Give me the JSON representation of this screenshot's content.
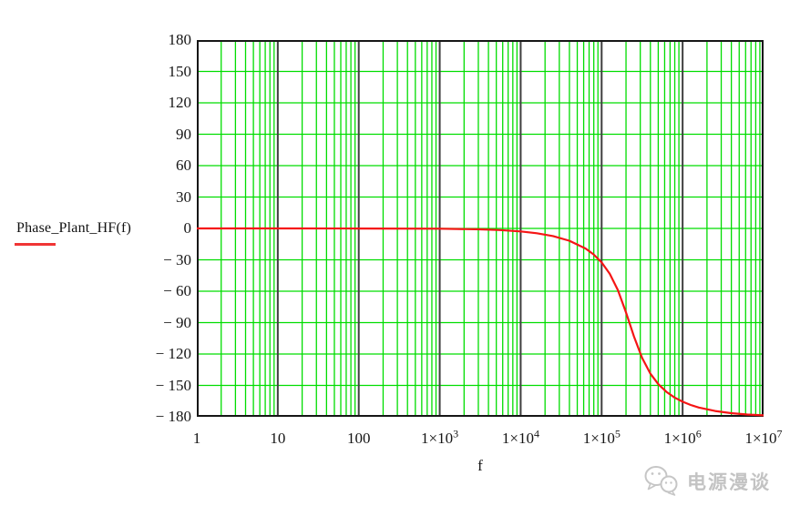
{
  "legend": {
    "label": "Phase_Plant_HF(f)",
    "line_color": "#f03535"
  },
  "chart_data": {
    "type": "line",
    "title": "",
    "xlabel": "f",
    "ylabel": "Phase_Plant_HF(f)",
    "x_scale": "log10",
    "xlim_log10": [
      0,
      7
    ],
    "ylim": [
      -180,
      180
    ],
    "y_tick_step": 30,
    "grid_on": true,
    "legend_position": "left-middle",
    "y_ticks": [
      {
        "value": 180,
        "label": "180"
      },
      {
        "value": 150,
        "label": "150"
      },
      {
        "value": 120,
        "label": "120"
      },
      {
        "value": 90,
        "label": "90"
      },
      {
        "value": 60,
        "label": "60"
      },
      {
        "value": 30,
        "label": "30"
      },
      {
        "value": 0,
        "label": "0"
      },
      {
        "value": -30,
        "label": "− 30"
      },
      {
        "value": -60,
        "label": "− 60"
      },
      {
        "value": -90,
        "label": "− 90"
      },
      {
        "value": -120,
        "label": "− 120"
      },
      {
        "value": -150,
        "label": "− 150"
      },
      {
        "value": -180,
        "label": "− 180"
      }
    ],
    "x_ticks": [
      {
        "log10": 0,
        "base": "1",
        "exp": ""
      },
      {
        "log10": 1,
        "base": "10",
        "exp": ""
      },
      {
        "log10": 2,
        "base": "100",
        "exp": ""
      },
      {
        "log10": 3,
        "base": "1×10",
        "exp": "3"
      },
      {
        "log10": 4,
        "base": "1×10",
        "exp": "4"
      },
      {
        "log10": 5,
        "base": "1×10",
        "exp": "5"
      },
      {
        "log10": 6,
        "base": "1×10",
        "exp": "6"
      },
      {
        "log10": 7,
        "base": "1×10",
        "exp": "7"
      }
    ],
    "colors": {
      "minor_grid": "#00dd00",
      "decade_line": "#3f3f3f",
      "frame": "#161616",
      "curve": "#f51515"
    },
    "series": [
      {
        "name": "Phase_Plant_HF(f)",
        "color": "#f51515",
        "x_log10": [
          0,
          1,
          2,
          3,
          3.5,
          3.75,
          4,
          4.2,
          4.4,
          4.6,
          4.8,
          4.9,
          5,
          5.1,
          5.2,
          5.3,
          5.34,
          5.4,
          5.5,
          5.6,
          5.7,
          5.8,
          5.9,
          6,
          6.1,
          6.2,
          6.4,
          6.6,
          6.8,
          7
        ],
        "phase_deg": [
          0,
          0,
          -0.1,
          -0.3,
          -0.9,
          -1.6,
          -2.9,
          -4.6,
          -7.3,
          -11.7,
          -19.1,
          -24.8,
          -32.5,
          -43.4,
          -59,
          -80,
          -89.4,
          -103.4,
          -123.7,
          -138.5,
          -148.9,
          -156.2,
          -161.6,
          -165.6,
          -168.7,
          -171.1,
          -174.4,
          -176.5,
          -177.8,
          -178.6
        ]
      }
    ]
  },
  "watermark": {
    "text": "电源漫谈",
    "icon": "wechat-bubbles-icon",
    "color": "#c3c3c3"
  }
}
